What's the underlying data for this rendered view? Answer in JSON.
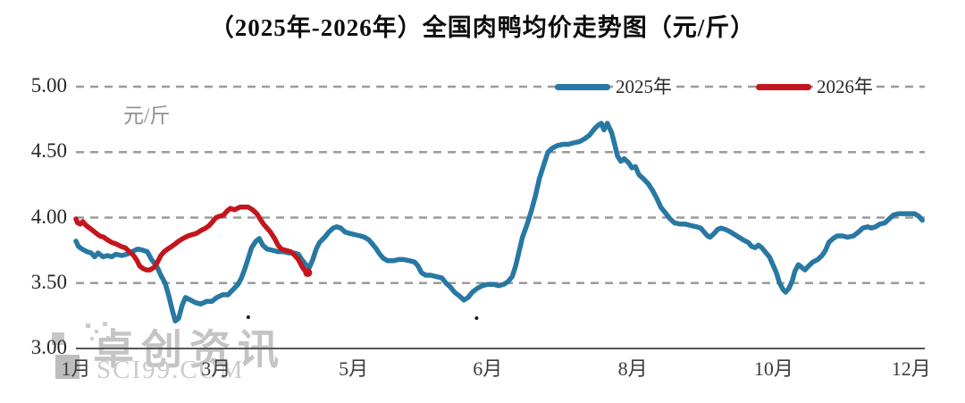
{
  "title": "（2025年-2026年）全国肉鸭均价走势图（元/斤）",
  "watermark": {
    "name": "卓创资讯",
    "site": "SCI99.COM"
  },
  "chart_data": {
    "type": "line",
    "title": "（2025年-2026年）全国肉鸭均价走势图（元/斤）",
    "xlabel": "",
    "ylabel": "元/斤",
    "unit_label": "元/斤",
    "ylim": [
      3.0,
      5.0
    ],
    "grid": "horizontal-dashed",
    "legend_position": "top-right-inline",
    "colors": {
      "grid": "#9b9b9b",
      "axis": "#565656",
      "series_2025": "#2878a3",
      "series_2026": "#c3161c",
      "tick_text": "#3c3c3c"
    },
    "yticks": [
      {
        "label": "5.00",
        "value": 5.0
      },
      {
        "label": "4.50",
        "value": 4.5
      },
      {
        "label": "4.00",
        "value": 4.0
      },
      {
        "label": "3.50",
        "value": 3.5
      },
      {
        "label": "3.00",
        "value": 3.0
      }
    ],
    "xticks": [
      {
        "label": "1月",
        "pct": 0
      },
      {
        "label": "3月",
        "pct": 16.5
      },
      {
        "label": "5月",
        "pct": 32.7
      },
      {
        "label": "6月",
        "pct": 48.5
      },
      {
        "label": "8月",
        "pct": 65.6
      },
      {
        "label": "10月",
        "pct": 82.2
      },
      {
        "label": "12月",
        "pct": 98.4
      }
    ],
    "series": [
      {
        "name": "2025年",
        "color": "#2878a3",
        "end_marker": false,
        "points": [
          [
            0,
            3.82
          ],
          [
            0.3,
            3.78
          ],
          [
            0.7,
            3.76
          ],
          [
            1.3,
            3.74
          ],
          [
            1.8,
            3.73
          ],
          [
            2.2,
            3.7
          ],
          [
            2.6,
            3.73
          ],
          [
            3.2,
            3.7
          ],
          [
            3.7,
            3.71
          ],
          [
            4.2,
            3.7
          ],
          [
            4.7,
            3.72
          ],
          [
            5.4,
            3.71
          ],
          [
            6,
            3.72
          ],
          [
            6.6,
            3.74
          ],
          [
            7.3,
            3.76
          ],
          [
            7.9,
            3.75
          ],
          [
            8.4,
            3.74
          ],
          [
            8.9,
            3.68
          ],
          [
            9.5,
            3.63
          ],
          [
            10,
            3.56
          ],
          [
            10.5,
            3.5
          ],
          [
            10.9,
            3.41
          ],
          [
            11.4,
            3.28
          ],
          [
            11.7,
            3.21
          ],
          [
            12.1,
            3.23
          ],
          [
            12.5,
            3.33
          ],
          [
            12.9,
            3.39
          ],
          [
            13.5,
            3.37
          ],
          [
            14.1,
            3.35
          ],
          [
            14.7,
            3.34
          ],
          [
            15.4,
            3.36
          ],
          [
            16,
            3.36
          ],
          [
            16.6,
            3.39
          ],
          [
            17.3,
            3.41
          ],
          [
            17.9,
            3.41
          ],
          [
            18.5,
            3.45
          ],
          [
            19.1,
            3.49
          ],
          [
            19.5,
            3.54
          ],
          [
            19.9,
            3.61
          ],
          [
            20.3,
            3.69
          ],
          [
            20.7,
            3.77
          ],
          [
            21.2,
            3.82
          ],
          [
            21.6,
            3.84
          ],
          [
            22,
            3.79
          ],
          [
            22.5,
            3.76
          ],
          [
            23.2,
            3.75
          ],
          [
            23.8,
            3.74
          ],
          [
            24.4,
            3.74
          ],
          [
            25.1,
            3.73
          ],
          [
            25.7,
            3.73
          ],
          [
            26.2,
            3.72
          ],
          [
            26.6,
            3.68
          ],
          [
            27.1,
            3.64
          ],
          [
            27.5,
            3.62
          ],
          [
            27.9,
            3.68
          ],
          [
            28.3,
            3.76
          ],
          [
            28.7,
            3.81
          ],
          [
            29.3,
            3.85
          ],
          [
            29.8,
            3.89
          ],
          [
            30.3,
            3.92
          ],
          [
            30.7,
            3.93
          ],
          [
            31.2,
            3.92
          ],
          [
            31.7,
            3.89
          ],
          [
            32.2,
            3.88
          ],
          [
            32.8,
            3.87
          ],
          [
            33.5,
            3.86
          ],
          [
            34,
            3.85
          ],
          [
            34.5,
            3.83
          ],
          [
            34.9,
            3.8
          ],
          [
            35.4,
            3.76
          ],
          [
            35.8,
            3.72
          ],
          [
            36.2,
            3.69
          ],
          [
            36.7,
            3.67
          ],
          [
            37.4,
            3.67
          ],
          [
            38,
            3.68
          ],
          [
            38.6,
            3.68
          ],
          [
            39.3,
            3.67
          ],
          [
            39.9,
            3.66
          ],
          [
            40.3,
            3.63
          ],
          [
            40.7,
            3.58
          ],
          [
            41.2,
            3.56
          ],
          [
            41.8,
            3.56
          ],
          [
            42.4,
            3.55
          ],
          [
            43.1,
            3.54
          ],
          [
            43.6,
            3.5
          ],
          [
            44.1,
            3.47
          ],
          [
            44.6,
            3.43
          ],
          [
            45.2,
            3.4
          ],
          [
            45.7,
            3.37
          ],
          [
            46.2,
            3.39
          ],
          [
            46.7,
            3.43
          ],
          [
            47.3,
            3.46
          ],
          [
            47.9,
            3.48
          ],
          [
            48.5,
            3.49
          ],
          [
            49.2,
            3.49
          ],
          [
            49.8,
            3.48
          ],
          [
            50.4,
            3.49
          ],
          [
            50.9,
            3.51
          ],
          [
            51.4,
            3.55
          ],
          [
            51.8,
            3.63
          ],
          [
            52.2,
            3.74
          ],
          [
            52.6,
            3.85
          ],
          [
            53.1,
            3.94
          ],
          [
            53.6,
            4.04
          ],
          [
            54.1,
            4.16
          ],
          [
            54.6,
            4.3
          ],
          [
            55.2,
            4.42
          ],
          [
            55.6,
            4.5
          ],
          [
            56.1,
            4.53
          ],
          [
            56.7,
            4.55
          ],
          [
            57.4,
            4.56
          ],
          [
            58,
            4.56
          ],
          [
            58.6,
            4.57
          ],
          [
            59.3,
            4.58
          ],
          [
            59.9,
            4.6
          ],
          [
            60.5,
            4.63
          ],
          [
            61.1,
            4.68
          ],
          [
            61.6,
            4.71
          ],
          [
            61.9,
            4.72
          ],
          [
            62.2,
            4.67
          ],
          [
            62.6,
            4.72
          ],
          [
            63.1,
            4.65
          ],
          [
            63.5,
            4.55
          ],
          [
            63.8,
            4.47
          ],
          [
            64.2,
            4.43
          ],
          [
            64.6,
            4.45
          ],
          [
            65.1,
            4.42
          ],
          [
            65.5,
            4.38
          ],
          [
            65.9,
            4.39
          ],
          [
            66.3,
            4.33
          ],
          [
            66.8,
            4.3
          ],
          [
            67.4,
            4.26
          ],
          [
            67.9,
            4.21
          ],
          [
            68.4,
            4.15
          ],
          [
            68.9,
            4.08
          ],
          [
            69.5,
            4.03
          ],
          [
            70,
            3.99
          ],
          [
            70.5,
            3.96
          ],
          [
            71.2,
            3.95
          ],
          [
            71.8,
            3.95
          ],
          [
            72.4,
            3.94
          ],
          [
            73.1,
            3.93
          ],
          [
            73.6,
            3.92
          ],
          [
            74,
            3.89
          ],
          [
            74.4,
            3.86
          ],
          [
            74.7,
            3.85
          ],
          [
            75.2,
            3.88
          ],
          [
            75.6,
            3.91
          ],
          [
            76,
            3.92
          ],
          [
            76.5,
            3.91
          ],
          [
            77.1,
            3.89
          ],
          [
            77.6,
            3.87
          ],
          [
            78.1,
            3.85
          ],
          [
            78.6,
            3.83
          ],
          [
            79.2,
            3.81
          ],
          [
            79.6,
            3.78
          ],
          [
            80,
            3.77
          ],
          [
            80.4,
            3.79
          ],
          [
            80.8,
            3.77
          ],
          [
            81.3,
            3.73
          ],
          [
            81.7,
            3.7
          ],
          [
            82.1,
            3.64
          ],
          [
            82.5,
            3.58
          ],
          [
            82.9,
            3.5
          ],
          [
            83.3,
            3.45
          ],
          [
            83.6,
            3.43
          ],
          [
            84,
            3.46
          ],
          [
            84.4,
            3.52
          ],
          [
            84.7,
            3.59
          ],
          [
            85.1,
            3.64
          ],
          [
            85.5,
            3.62
          ],
          [
            85.9,
            3.6
          ],
          [
            86.3,
            3.63
          ],
          [
            86.8,
            3.66
          ],
          [
            87.4,
            3.68
          ],
          [
            87.9,
            3.71
          ],
          [
            88.3,
            3.75
          ],
          [
            88.7,
            3.81
          ],
          [
            89.2,
            3.84
          ],
          [
            89.7,
            3.86
          ],
          [
            90.3,
            3.86
          ],
          [
            90.9,
            3.85
          ],
          [
            91.6,
            3.86
          ],
          [
            92.2,
            3.89
          ],
          [
            92.7,
            3.92
          ],
          [
            93.3,
            3.93
          ],
          [
            93.7,
            3.92
          ],
          [
            94.2,
            3.93
          ],
          [
            94.7,
            3.95
          ],
          [
            95.3,
            3.96
          ],
          [
            95.8,
            3.99
          ],
          [
            96.3,
            4.02
          ],
          [
            96.9,
            4.03
          ],
          [
            97.6,
            4.03
          ],
          [
            98.2,
            4.03
          ],
          [
            98.8,
            4.03
          ],
          [
            99.3,
            4.01
          ],
          [
            99.7,
            3.98
          ]
        ]
      },
      {
        "name": "2026年",
        "color": "#c3161c",
        "end_marker": true,
        "points": [
          [
            0,
            3.99
          ],
          [
            0.2,
            3.96
          ],
          [
            0.5,
            3.95
          ],
          [
            0.8,
            3.97
          ],
          [
            1.2,
            3.94
          ],
          [
            1.6,
            3.92
          ],
          [
            2,
            3.9
          ],
          [
            2.4,
            3.88
          ],
          [
            2.8,
            3.86
          ],
          [
            3.3,
            3.85
          ],
          [
            3.7,
            3.83
          ],
          [
            4.2,
            3.81
          ],
          [
            4.7,
            3.8
          ],
          [
            5.3,
            3.78
          ],
          [
            5.8,
            3.77
          ],
          [
            6.3,
            3.74
          ],
          [
            6.8,
            3.71
          ],
          [
            7.2,
            3.67
          ],
          [
            7.5,
            3.63
          ],
          [
            7.9,
            3.61
          ],
          [
            8.3,
            3.6
          ],
          [
            8.7,
            3.6
          ],
          [
            9.2,
            3.62
          ],
          [
            9.6,
            3.66
          ],
          [
            10,
            3.71
          ],
          [
            10.4,
            3.74
          ],
          [
            10.8,
            3.76
          ],
          [
            11.3,
            3.78
          ],
          [
            11.7,
            3.8
          ],
          [
            12.1,
            3.82
          ],
          [
            12.6,
            3.84
          ],
          [
            13.2,
            3.86
          ],
          [
            13.7,
            3.87
          ],
          [
            14.2,
            3.88
          ],
          [
            14.7,
            3.9
          ],
          [
            15.3,
            3.92
          ],
          [
            15.7,
            3.94
          ],
          [
            16.1,
            3.97
          ],
          [
            16.5,
            4
          ],
          [
            16.9,
            4.01
          ],
          [
            17.4,
            4.02
          ],
          [
            17.8,
            4.05
          ],
          [
            18.2,
            4.07
          ],
          [
            18.7,
            4.06
          ],
          [
            19.3,
            4.08
          ],
          [
            19.8,
            4.08
          ],
          [
            20.3,
            4.08
          ],
          [
            20.8,
            4.06
          ],
          [
            21.3,
            4.03
          ],
          [
            21.7,
            3.99
          ],
          [
            22.1,
            3.95
          ],
          [
            22.5,
            3.92
          ],
          [
            22.9,
            3.89
          ],
          [
            23.4,
            3.84
          ],
          [
            23.8,
            3.79
          ],
          [
            24.2,
            3.76
          ],
          [
            24.7,
            3.75
          ],
          [
            25.3,
            3.74
          ],
          [
            25.8,
            3.71
          ],
          [
            26.2,
            3.68
          ],
          [
            26.6,
            3.63
          ],
          [
            26.9,
            3.6
          ],
          [
            27.3,
            3.58
          ]
        ]
      }
    ]
  }
}
